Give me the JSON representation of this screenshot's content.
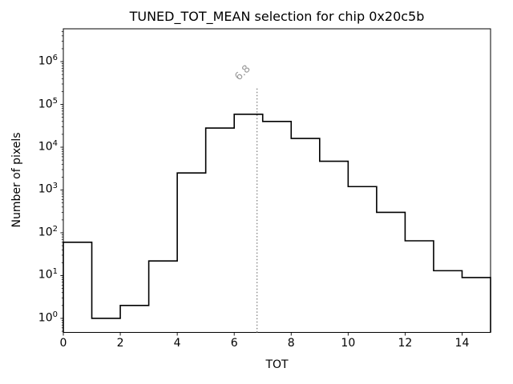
{
  "chart_data": {
    "type": "step-histogram",
    "title": "TUNED_TOT_MEAN selection for chip 0x20c5b",
    "xlabel": "TOT",
    "ylabel": "Number of pixels",
    "yscale": "log",
    "grid": false,
    "legend": null,
    "xlim": [
      0,
      15
    ],
    "ylim": [
      0.47,
      5850000
    ],
    "bin_edges": [
      0,
      1,
      2,
      3,
      4,
      5,
      6,
      7,
      8,
      9,
      10,
      11,
      12,
      13,
      14,
      15
    ],
    "counts": [
      60,
      1,
      2,
      22,
      2500,
      28000,
      59000,
      40000,
      16000,
      4700,
      1200,
      300,
      65,
      13,
      9
    ],
    "xticks": [
      0,
      2,
      4,
      6,
      8,
      10,
      12,
      14
    ],
    "ytick_exponents": [
      0,
      1,
      2,
      3,
      4,
      5,
      6
    ],
    "line_color": "#000000",
    "threshold": {
      "value": 6.8,
      "label": "6.8",
      "line_top_value": 250000,
      "color": "#8f8f8f",
      "label_color": "#999999"
    }
  }
}
